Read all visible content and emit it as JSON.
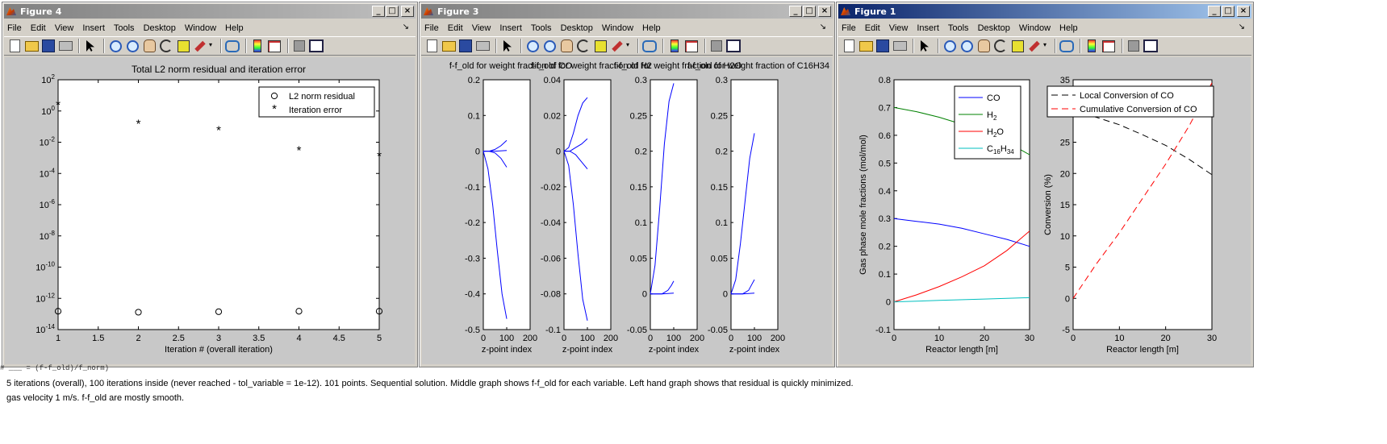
{
  "windows": [
    {
      "id": "fig4",
      "title": "Figure 4",
      "active": false,
      "menu": [
        "File",
        "Edit",
        "View",
        "Insert",
        "Tools",
        "Desktop",
        "Window",
        "Help"
      ],
      "chart_data": {
        "type": "scatter",
        "title": "Total L2 norm residual and iteration error",
        "xlabel": "Iteration # (overall iteration)",
        "ylabel": "",
        "xlim": [
          1,
          5
        ],
        "ylim_log10": [
          -14,
          2
        ],
        "yscale": "log",
        "xticks": [
          "1",
          "1.5",
          "2",
          "2.5",
          "3",
          "3.5",
          "4",
          "4.5",
          "5"
        ],
        "yticks_exp": [
          "2",
          "0",
          "-2",
          "-4",
          "-6",
          "-8",
          "-10",
          "-12",
          "-14"
        ],
        "ytick_base": "10",
        "legend_position": "top-right",
        "series": [
          {
            "name": "L2 norm residual",
            "marker": "o",
            "x": [
              1,
              2,
              3,
              4,
              5
            ],
            "y": [
              1.5e-13,
              1.3e-13,
              1.4e-13,
              1.5e-13,
              1.5e-13
            ]
          },
          {
            "name": "Iteration error",
            "marker": "*",
            "x": [
              1,
              2,
              3,
              4,
              5
            ],
            "y": [
              2.5,
              0.15,
              0.06,
              0.003,
              0.0013
            ]
          }
        ]
      }
    },
    {
      "id": "fig3",
      "title": "Figure 3",
      "active": false,
      "menu": [
        "File",
        "Edit",
        "View",
        "Insert",
        "Tools",
        "Desktop",
        "Window",
        "Help"
      ],
      "chart_data": [
        {
          "type": "line",
          "title": "f-f_old for weight fraction of CO",
          "xlabel": "z-point index",
          "xlim": [
            0,
            200
          ],
          "ylim": [
            -0.5,
            0.2
          ],
          "xticks": [
            "0",
            "100",
            "200"
          ],
          "yticks": [
            "0.2",
            "0.1",
            "0",
            "-0.1",
            "-0.2",
            "-0.3",
            "-0.4",
            "-0.5"
          ],
          "series": [
            {
              "x": [
                0,
                20,
                40,
                60,
                80,
                100
              ],
              "y": [
                0,
                -0.05,
                -0.15,
                -0.28,
                -0.4,
                -0.47
              ]
            },
            {
              "x": [
                0,
                25,
                50,
                75,
                100
              ],
              "y": [
                0,
                0,
                0.005,
                0.015,
                0.03
              ]
            },
            {
              "x": [
                0,
                25,
                50,
                75,
                100
              ],
              "y": [
                0,
                0,
                -0.005,
                -0.02,
                -0.045
              ]
            },
            {
              "x": [
                0,
                50,
                100
              ],
              "y": [
                0,
                0,
                0.002
              ]
            }
          ]
        },
        {
          "type": "line",
          "title": "f-f_old for weight fraction of H2",
          "xlabel": "z-point index",
          "xlim": [
            0,
            200
          ],
          "ylim": [
            -0.1,
            0.04
          ],
          "xticks": [
            "0",
            "100",
            "200"
          ],
          "yticks": [
            "0.04",
            "0.02",
            "0",
            "-0.02",
            "-0.04",
            "-0.06",
            "-0.08",
            "-0.1"
          ],
          "series": [
            {
              "x": [
                0,
                20,
                40,
                60,
                80,
                100
              ],
              "y": [
                0,
                -0.008,
                -0.03,
                -0.058,
                -0.083,
                -0.095
              ]
            },
            {
              "x": [
                0,
                20,
                40,
                60,
                80,
                100
              ],
              "y": [
                0,
                0.002,
                0.01,
                0.02,
                0.027,
                0.03
              ]
            },
            {
              "x": [
                0,
                25,
                50,
                75,
                100
              ],
              "y": [
                0,
                0,
                0.002,
                0.004,
                0.007
              ]
            },
            {
              "x": [
                0,
                25,
                50,
                75,
                100
              ],
              "y": [
                0,
                0,
                -0.002,
                -0.006,
                -0.01
              ]
            }
          ]
        },
        {
          "type": "line",
          "title": "f-f_old for weight fraction of H2O",
          "xlabel": "z-point index",
          "xlim": [
            0,
            200
          ],
          "ylim": [
            -0.05,
            0.3
          ],
          "xticks": [
            "0",
            "100",
            "200"
          ],
          "yticks": [
            "0.3",
            "0.25",
            "0.2",
            "0.15",
            "0.1",
            "0.05",
            "0",
            "-0.05"
          ],
          "series": [
            {
              "x": [
                0,
                20,
                40,
                60,
                80,
                100
              ],
              "y": [
                0,
                0.04,
                0.12,
                0.21,
                0.27,
                0.295
              ]
            },
            {
              "x": [
                0,
                50,
                75,
                90,
                100
              ],
              "y": [
                0,
                0,
                0.005,
                0.012,
                0.018
              ]
            },
            {
              "x": [
                0,
                50,
                100
              ],
              "y": [
                0,
                0,
                0.001
              ]
            }
          ]
        },
        {
          "type": "line",
          "title": "f-f_old for weight fraction of C16H34",
          "xlabel": "z-point index",
          "xlim": [
            0,
            200
          ],
          "ylim": [
            -0.05,
            0.3
          ],
          "xticks": [
            "0",
            "100",
            "200"
          ],
          "yticks": [
            "0.3",
            "0.25",
            "0.2",
            "0.15",
            "0.1",
            "0.05",
            "0",
            "-0.05"
          ],
          "series": [
            {
              "x": [
                0,
                20,
                40,
                60,
                80,
                100
              ],
              "y": [
                0,
                0.02,
                0.07,
                0.13,
                0.19,
                0.225
              ]
            },
            {
              "x": [
                0,
                50,
                75,
                90,
                100
              ],
              "y": [
                0,
                0,
                0.005,
                0.014,
                0.02
              ]
            },
            {
              "x": [
                0,
                50,
                100
              ],
              "y": [
                0,
                0,
                0.001
              ]
            }
          ]
        }
      ]
    },
    {
      "id": "fig1",
      "title": "Figure 1",
      "active": true,
      "menu": [
        "File",
        "Edit",
        "View",
        "Insert",
        "Tools",
        "Desktop",
        "Window",
        "Help"
      ],
      "chart_data": [
        {
          "type": "line",
          "xlabel": "Reactor length [m]",
          "ylabel": "Gas phase mole fractions (mol/mol)",
          "xlim": [
            0,
            30
          ],
          "ylim": [
            -0.1,
            0.8
          ],
          "xticks": [
            "0",
            "10",
            "20",
            "30"
          ],
          "yticks": [
            "0.8",
            "0.7",
            "0.6",
            "0.5",
            "0.4",
            "0.3",
            "0.2",
            "0.1",
            "0",
            "-0.1"
          ],
          "legend_position": "top-right",
          "series": [
            {
              "name": "CO",
              "color": "#0000ff",
              "x": [
                0,
                5,
                10,
                15,
                20,
                25,
                30
              ],
              "y": [
                0.3,
                0.29,
                0.28,
                0.265,
                0.245,
                0.225,
                0.2
              ]
            },
            {
              "name": "H2",
              "color": "#008000",
              "x": [
                0,
                5,
                10,
                15,
                20,
                25,
                30
              ],
              "y": [
                0.7,
                0.685,
                0.665,
                0.64,
                0.61,
                0.575,
                0.53
              ]
            },
            {
              "name": "H2O",
              "color": "#ff0000",
              "x": [
                0,
                5,
                10,
                15,
                20,
                25,
                30
              ],
              "y": [
                0.0,
                0.025,
                0.055,
                0.09,
                0.13,
                0.185,
                0.255
              ]
            },
            {
              "name": "C16H34",
              "color": "#00bfbf",
              "x": [
                0,
                10,
                20,
                30
              ],
              "y": [
                0.0,
                0.005,
                0.01,
                0.015
              ]
            }
          ]
        },
        {
          "type": "line",
          "xlabel": "Reactor length [m]",
          "ylabel": "Conversion (%)",
          "xlim": [
            0,
            30
          ],
          "ylim": [
            -5,
            35
          ],
          "xticks": [
            "0",
            "10",
            "20",
            "30"
          ],
          "yticks": [
            "35",
            "30",
            "25",
            "20",
            "15",
            "10",
            "5",
            "0",
            "-5"
          ],
          "legend_position": "top",
          "series": [
            {
              "name": "Local Conversion of CO",
              "color": "#000000",
              "dash": "dashed",
              "x": [
                0,
                5,
                10,
                15,
                20,
                25,
                30
              ],
              "y": [
                30,
                29,
                27.8,
                26.2,
                24.5,
                22.3,
                19.8
              ]
            },
            {
              "name": "Cumulative Conversion of CO",
              "color": "#ff0000",
              "dash": "dashed",
              "x": [
                0,
                5,
                10,
                15,
                20,
                25,
                30
              ],
              "y": [
                0,
                5.5,
                10.5,
                16,
                21.5,
                27.5,
                34.5
              ]
            }
          ]
        }
      ]
    }
  ],
  "caption": {
    "line1": "5 iterations (overall), 100 iterations inside (never reached - tol_variable = 1e-12). 101 points. Sequential solution. Middle graph shows f-f_old for each variable. Left hand graph shows that residual is quickly minimized.",
    "line2": "gas velocity 1 m/s. f-f_old are mostly smooth."
  },
  "command_fragment": "# ___ = (f-f_old)/f_norm)"
}
